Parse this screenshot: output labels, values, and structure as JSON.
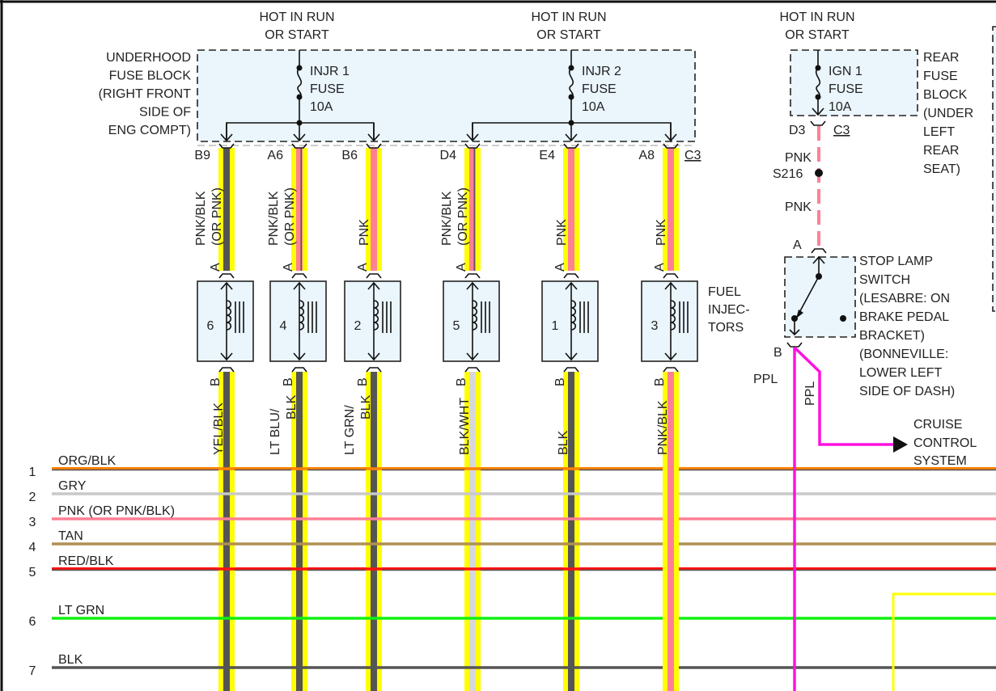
{
  "power_sources": [
    {
      "line1": "HOT IN RUN",
      "line2": "OR START"
    },
    {
      "line1": "HOT IN RUN",
      "line2": "OR START"
    },
    {
      "line1": "HOT IN RUN",
      "line2": "OR START"
    }
  ],
  "underhood_fuse_block": {
    "label": [
      "UNDERHOOD",
      "FUSE BLOCK",
      "(RIGHT FRONT",
      "SIDE OF",
      "ENG COMPT)"
    ],
    "fuses": [
      {
        "name": "INJR 1",
        "type": "FUSE",
        "rating": "10A"
      },
      {
        "name": "INJR 2",
        "type": "FUSE",
        "rating": "10A"
      }
    ],
    "connector": "C3"
  },
  "rear_fuse_block": {
    "label": [
      "REAR",
      "FUSE",
      "BLOCK",
      "(UNDER",
      "LEFT",
      "REAR",
      "SEAT)"
    ],
    "fuse": {
      "name": "IGN 1",
      "type": "FUSE",
      "rating": "10A"
    },
    "pin": "D3",
    "connector": "C3",
    "wire_top": "PNK",
    "splice": "S216",
    "wire_bottom": "PNK"
  },
  "injectors_label": [
    "FUEL",
    "INJEC-",
    "TORS"
  ],
  "injectors": [
    {
      "number": "6",
      "pin": "B9",
      "feed_wire": [
        "PNK/BLK",
        "(OR PNK)"
      ],
      "term_a": "A",
      "term_b": "B",
      "ctrl_wire": [
        "YEL/BLK"
      ],
      "feed_color": "#555555",
      "ctrl_color": "#555555"
    },
    {
      "number": "4",
      "pin": "A6",
      "feed_wire": [
        "PNK/BLK",
        "(OR PNK)"
      ],
      "term_a": "A",
      "term_b": "B",
      "ctrl_wire": [
        "LT BLU/",
        "BLK"
      ],
      "feed_color": "#ff8095",
      "ctrl_color": "#555555"
    },
    {
      "number": "2",
      "pin": "B6",
      "feed_wire": [
        "PNK"
      ],
      "term_a": "A",
      "term_b": "B",
      "ctrl_wire": [
        "LT GRN/",
        "BLK"
      ],
      "feed_color": "#ff8095",
      "ctrl_color": "#555555"
    },
    {
      "number": "5",
      "pin": "D4",
      "feed_wire": [
        "PNK/BLK",
        "(OR PNK)"
      ],
      "term_a": "A",
      "term_b": "B",
      "ctrl_wire": [
        "BLK/WHT"
      ],
      "feed_color": "#ff8095",
      "ctrl_color": "#d8d8d8"
    },
    {
      "number": "1",
      "pin": "E4",
      "feed_wire": [
        "PNK"
      ],
      "term_a": "A",
      "term_b": "B",
      "ctrl_wire": [
        "BLK"
      ],
      "feed_color": "#ff8095",
      "ctrl_color": "#555555"
    },
    {
      "number": "3",
      "pin": "A8",
      "feed_wire": [
        "PNK"
      ],
      "term_a": "A",
      "term_b": "B",
      "ctrl_wire": [
        "PNK/BLK"
      ],
      "feed_color": "#ff8095",
      "ctrl_color": "#ff8095"
    }
  ],
  "stop_lamp_switch": {
    "label": [
      "STOP LAMP",
      "SWITCH",
      "(LESABRE: ON",
      "BRAKE PEDAL",
      "BRACKET)",
      "(BONNEVILLE:",
      "LOWER LEFT",
      "SIDE OF DASH)"
    ],
    "term_a": "A",
    "term_b": "B",
    "wire_out": "PPL",
    "wire_branch": "PPL"
  },
  "cruise_control": [
    "CRUISE",
    "CONTROL",
    "SYSTEM"
  ],
  "bus_lines": [
    {
      "number": "1",
      "label": "ORG/BLK",
      "color": "#ff8000",
      "stripe": "#555555"
    },
    {
      "number": "2",
      "label": "GRY",
      "color": "#c8c8c8"
    },
    {
      "number": "3",
      "label": "PNK  (OR PNK/BLK)",
      "color": "#ff8095"
    },
    {
      "number": "4",
      "label": "TAN",
      "color": "#b09050"
    },
    {
      "number": "5",
      "label": "RED/BLK",
      "color": "#ff1010",
      "stripe": "#555555"
    },
    {
      "number": "6",
      "label": "LT GRN",
      "color": "#10f010"
    },
    {
      "number": "7",
      "label": "BLK",
      "color": "#555555"
    }
  ],
  "colors": {
    "highlight": "#ffff00",
    "ppl": "#ff10e0",
    "box_fill": "#eaf5fc"
  }
}
